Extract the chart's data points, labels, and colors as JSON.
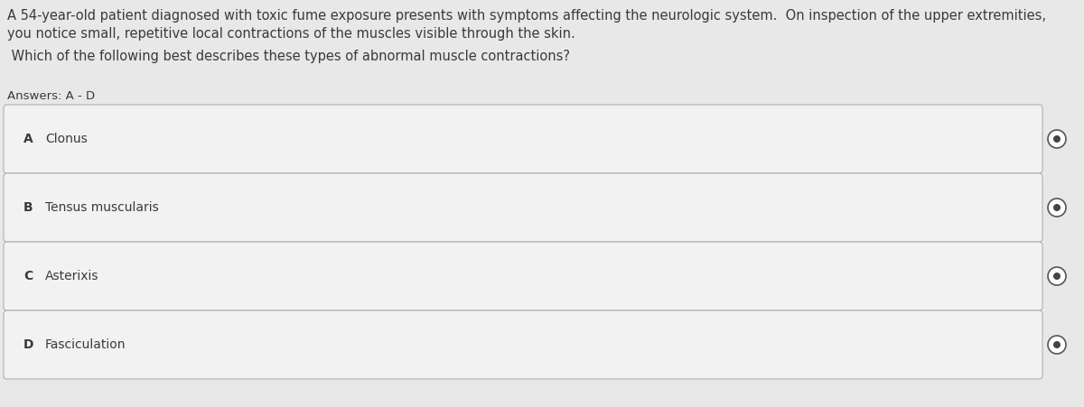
{
  "bg_color": "#e8e8e8",
  "box_face_color": "#f2f2f2",
  "box_edge_color": "#b0b0b0",
  "text_color": "#3a3a3a",
  "radio_outer_color": "#555555",
  "radio_inner_color": "#444444",
  "question_line1": "A 54-year-old patient diagnosed with toxic fume exposure presents with symptoms affecting the neurologic system.  On inspection of the upper extremities,",
  "question_line2": "you notice small, repetitive local contractions of the muscles visible through the skin.",
  "question_line3": " Which of the following best describes these types of abnormal muscle contractions?",
  "answers_label": "Answers: A - D",
  "options": [
    {
      "letter": "A",
      "text": "Clonus"
    },
    {
      "letter": "B",
      "text": "Tensus muscularis"
    },
    {
      "letter": "C",
      "text": "Asterixis"
    },
    {
      "letter": "D",
      "text": "Fasciculation"
    }
  ],
  "q_fontsize": 10.5,
  "ans_fontsize": 9.5,
  "opt_fontsize": 10.0,
  "fig_width": 12.0,
  "fig_height": 4.51,
  "dpi": 100
}
